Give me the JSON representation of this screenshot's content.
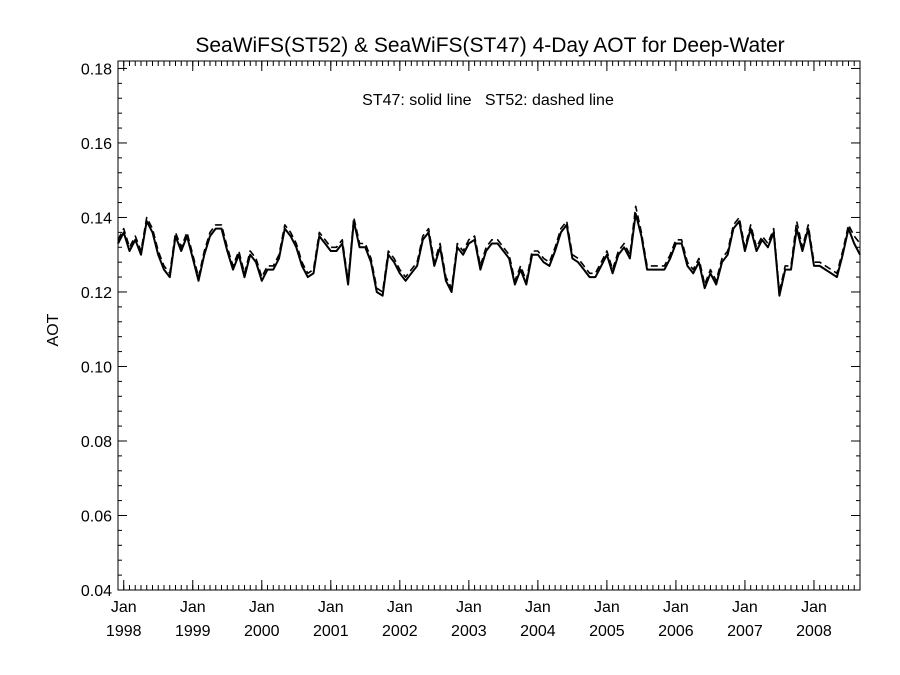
{
  "chart_data": {
    "type": "line",
    "title": "SeaWiFS(ST52) & SeaWiFS(ST47) 4-Day AOT for Deep-Water",
    "ylabel": "AOT",
    "xlabel": "",
    "annotation": "ST47: solid line   ST52: dashed line",
    "ylim": [
      0.04,
      0.182
    ],
    "xlim": [
      1997.917,
      2008.667
    ],
    "y_ticks": [
      "0.04",
      "0.06",
      "0.08",
      "0.10",
      "0.12",
      "0.14",
      "0.16",
      "0.18"
    ],
    "x_ticks": [
      {
        "month": "Jan",
        "year": "1998",
        "x": 1998
      },
      {
        "month": "Jan",
        "year": "1999",
        "x": 1999
      },
      {
        "month": "Jan",
        "year": "2000",
        "x": 2000
      },
      {
        "month": "Jan",
        "year": "2001",
        "x": 2001
      },
      {
        "month": "Jan",
        "year": "2002",
        "x": 2002
      },
      {
        "month": "Jan",
        "year": "2003",
        "x": 2003
      },
      {
        "month": "Jan",
        "year": "2004",
        "x": 2004
      },
      {
        "month": "Jan",
        "year": "2005",
        "x": 2005
      },
      {
        "month": "Jan",
        "year": "2006",
        "x": 2006
      },
      {
        "month": "Jan",
        "year": "2007",
        "x": 2007
      },
      {
        "month": "Jan",
        "year": "2008",
        "x": 2008
      }
    ],
    "grid": false,
    "series": [
      {
        "name": "ST47",
        "style": "solid",
        "color": "#000000",
        "x": [
          1997.917,
          1998.0,
          1998.083,
          1998.167,
          1998.25,
          1998.333,
          1998.417,
          1998.5,
          1998.583,
          1998.667,
          1998.75,
          1998.833,
          1998.917,
          1999.0,
          1999.083,
          1999.167,
          1999.25,
          1999.333,
          1999.417,
          1999.5,
          1999.583,
          1999.667,
          1999.75,
          1999.833,
          1999.917,
          2000.0,
          2000.083,
          2000.167,
          2000.25,
          2000.333,
          2000.417,
          2000.5,
          2000.583,
          2000.667,
          2000.75,
          2000.833,
          2000.917,
          2001.0,
          2001.083,
          2001.167,
          2001.25,
          2001.333,
          2001.417,
          2001.5,
          2001.583,
          2001.667,
          2001.75,
          2001.833,
          2001.917,
          2002.0,
          2002.083,
          2002.167,
          2002.25,
          2002.333,
          2002.417,
          2002.5,
          2002.583,
          2002.667,
          2002.75,
          2002.833,
          2002.917,
          2003.0,
          2003.083,
          2003.167,
          2003.25,
          2003.333,
          2003.417,
          2003.5,
          2003.583,
          2003.667,
          2003.75,
          2003.833,
          2003.917,
          2004.0,
          2004.083,
          2004.167,
          2004.25,
          2004.333,
          2004.417,
          2004.5,
          2004.583,
          2004.667,
          2004.75,
          2004.833,
          2004.917,
          2005.0,
          2005.083,
          2005.167,
          2005.25,
          2005.333,
          2005.417,
          2005.5,
          2005.583,
          2005.667,
          2005.75,
          2005.833,
          2005.917,
          2006.0,
          2006.083,
          2006.167,
          2006.25,
          2006.333,
          2006.417,
          2006.5,
          2006.583,
          2006.667,
          2006.75,
          2006.833,
          2006.917,
          2007.0,
          2007.083,
          2007.167,
          2007.25,
          2007.333,
          2007.417,
          2007.5,
          2007.583,
          2007.667,
          2007.75,
          2007.833,
          2007.917,
          2008.0,
          2008.083,
          2008.167,
          2008.25,
          2008.333,
          2008.417,
          2008.5,
          2008.583,
          2008.667
        ],
        "y": [
          0.133,
          0.136,
          0.131,
          0.134,
          0.13,
          0.139,
          0.136,
          0.13,
          0.126,
          0.124,
          0.135,
          0.131,
          0.135,
          0.129,
          0.123,
          0.13,
          0.135,
          0.137,
          0.137,
          0.131,
          0.126,
          0.13,
          0.124,
          0.13,
          0.128,
          0.123,
          0.126,
          0.126,
          0.129,
          0.137,
          0.135,
          0.132,
          0.127,
          0.124,
          0.125,
          0.135,
          0.133,
          0.131,
          0.131,
          0.133,
          0.122,
          0.139,
          0.132,
          0.132,
          0.128,
          0.12,
          0.119,
          0.13,
          0.128,
          0.125,
          0.123,
          0.125,
          0.127,
          0.134,
          0.136,
          0.127,
          0.132,
          0.123,
          0.12,
          0.132,
          0.13,
          0.133,
          0.134,
          0.126,
          0.131,
          0.133,
          0.133,
          0.131,
          0.129,
          0.122,
          0.126,
          0.122,
          0.13,
          0.13,
          0.128,
          0.127,
          0.131,
          0.136,
          0.138,
          0.129,
          0.128,
          0.126,
          0.124,
          0.124,
          0.127,
          0.13,
          0.125,
          0.13,
          0.132,
          0.129,
          0.141,
          0.135,
          0.126,
          0.126,
          0.126,
          0.126,
          0.129,
          0.133,
          0.133,
          0.127,
          0.125,
          0.128,
          0.121,
          0.125,
          0.122,
          0.128,
          0.13,
          0.137,
          0.139,
          0.131,
          0.137,
          0.131,
          0.134,
          0.132,
          0.136,
          0.119,
          0.126,
          0.126,
          0.137,
          0.131,
          0.137,
          0.127,
          0.127,
          0.126,
          0.125,
          0.124,
          0.13,
          0.137,
          0.133,
          0.13
        ]
      },
      {
        "name": "ST52",
        "style": "dashed",
        "color": "#000000",
        "x": [
          1997.917,
          1998.0,
          1998.083,
          1998.167,
          1998.25,
          1998.333,
          1998.417,
          1998.5,
          1998.583,
          1998.667,
          1998.75,
          1998.833,
          1998.917,
          1999.0,
          1999.083,
          1999.167,
          1999.25,
          1999.333,
          1999.417,
          1999.5,
          1999.583,
          1999.667,
          1999.75,
          1999.833,
          1999.917,
          2000.0,
          2000.083,
          2000.167,
          2000.25,
          2000.333,
          2000.417,
          2000.5,
          2000.583,
          2000.667,
          2000.75,
          2000.833,
          2000.917,
          2001.0,
          2001.083,
          2001.167,
          2001.25,
          2001.333,
          2001.417,
          2001.5,
          2001.583,
          2001.667,
          2001.75,
          2001.833,
          2001.917,
          2002.0,
          2002.083,
          2002.167,
          2002.25,
          2002.333,
          2002.417,
          2002.5,
          2002.583,
          2002.667,
          2002.75,
          2002.833,
          2002.917,
          2003.0,
          2003.083,
          2003.167,
          2003.25,
          2003.333,
          2003.417,
          2003.5,
          2003.583,
          2003.667,
          2003.75,
          2003.833,
          2003.917,
          2004.0,
          2004.083,
          2004.167,
          2004.25,
          2004.333,
          2004.417,
          2004.5,
          2004.583,
          2004.667,
          2004.75,
          2004.833,
          2004.917,
          2005.0,
          2005.083,
          2005.167,
          2005.25,
          2005.333,
          2005.417,
          2005.5,
          2005.583,
          2005.667,
          2005.75,
          2005.833,
          2005.917,
          2006.0,
          2006.083,
          2006.167,
          2006.25,
          2006.333,
          2006.417,
          2006.5,
          2006.583,
          2006.667,
          2006.75,
          2006.833,
          2006.917,
          2007.0,
          2007.083,
          2007.167,
          2007.25,
          2007.333,
          2007.417,
          2007.5,
          2007.583,
          2007.667,
          2007.75,
          2007.833,
          2007.917,
          2008.0,
          2008.083,
          2008.167,
          2008.25,
          2008.333,
          2008.417,
          2008.5,
          2008.583,
          2008.667
        ],
        "y": [
          0.134,
          0.137,
          0.132,
          0.135,
          0.131,
          0.14,
          0.137,
          0.131,
          0.127,
          0.125,
          0.136,
          0.132,
          0.136,
          0.13,
          0.124,
          0.131,
          0.136,
          0.138,
          0.138,
          0.132,
          0.127,
          0.131,
          0.125,
          0.131,
          0.129,
          0.124,
          0.127,
          0.127,
          0.13,
          0.138,
          0.136,
          0.133,
          0.128,
          0.125,
          0.126,
          0.136,
          0.134,
          0.132,
          0.132,
          0.134,
          0.123,
          0.14,
          0.133,
          0.133,
          0.129,
          0.121,
          0.12,
          0.131,
          0.129,
          0.126,
          0.124,
          0.126,
          0.128,
          0.135,
          0.137,
          0.128,
          0.133,
          0.124,
          0.121,
          0.133,
          0.131,
          0.134,
          0.135,
          0.127,
          0.132,
          0.134,
          0.134,
          0.132,
          0.13,
          0.123,
          0.127,
          0.123,
          0.131,
          0.131,
          0.129,
          0.128,
          0.132,
          0.137,
          0.139,
          0.13,
          0.129,
          0.127,
          0.125,
          0.125,
          0.128,
          0.131,
          0.126,
          0.131,
          0.133,
          0.13,
          0.143,
          0.136,
          0.127,
          0.127,
          0.127,
          0.127,
          0.13,
          0.134,
          0.134,
          0.128,
          0.126,
          0.129,
          0.122,
          0.126,
          0.123,
          0.129,
          0.131,
          0.138,
          0.14,
          0.132,
          0.138,
          0.132,
          0.135,
          0.133,
          0.137,
          0.12,
          0.127,
          0.127,
          0.139,
          0.132,
          0.138,
          0.128,
          0.128,
          0.127,
          0.126,
          0.125,
          0.131,
          0.138,
          0.135,
          0.133
        ]
      }
    ]
  }
}
